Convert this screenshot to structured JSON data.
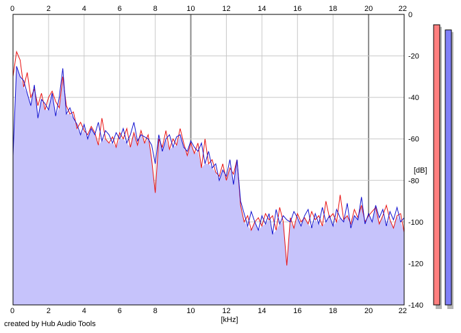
{
  "footer": {
    "credit": "created by Hub Audio Tools"
  },
  "chart_data": {
    "type": "line",
    "xlabel": "[kHz]",
    "ylabel": "[dB]",
    "xlim": [
      0,
      22
    ],
    "ylim": [
      -140,
      0
    ],
    "x_ticks": [
      0,
      2,
      4,
      6,
      8,
      10,
      12,
      14,
      16,
      18,
      20,
      22
    ],
    "y_ticks": [
      0,
      -20,
      -40,
      -60,
      -80,
      -100,
      -120,
      -140
    ],
    "grid": true,
    "fill_color": "#c6c3fb",
    "series": [
      {
        "color": "#e81010",
        "x": [
          0,
          0.2,
          0.4,
          0.6,
          0.8,
          1.0,
          1.2,
          1.4,
          1.6,
          1.8,
          2.0,
          2.2,
          2.4,
          2.6,
          2.8,
          3.0,
          3.2,
          3.4,
          3.6,
          3.8,
          4.0,
          4.2,
          4.4,
          4.6,
          4.8,
          5.0,
          5.2,
          5.4,
          5.6,
          5.8,
          6.0,
          6.2,
          6.4,
          6.6,
          6.8,
          7.0,
          7.2,
          7.4,
          7.6,
          7.8,
          8.0,
          8.2,
          8.4,
          8.6,
          8.8,
          9.0,
          9.2,
          9.4,
          9.6,
          9.8,
          10.0,
          10.2,
          10.4,
          10.6,
          10.8,
          11.0,
          11.2,
          11.4,
          11.6,
          11.8,
          12.0,
          12.2,
          12.4,
          12.6,
          12.8,
          13.0,
          13.2,
          13.4,
          13.6,
          13.8,
          14.0,
          14.2,
          14.4,
          14.6,
          14.8,
          15.0,
          15.2,
          15.4,
          15.6,
          15.8,
          16.0,
          16.2,
          16.4,
          16.6,
          16.8,
          17.0,
          17.2,
          17.4,
          17.6,
          17.8,
          18.0,
          18.2,
          18.4,
          18.6,
          18.8,
          19.0,
          19.2,
          19.4,
          19.6,
          19.8,
          20.0,
          20.2,
          20.4,
          20.6,
          20.8,
          21.0,
          21.2,
          21.4,
          21.6,
          21.8,
          22.0
        ],
        "y": [
          -30,
          -18,
          -22,
          -35,
          -28,
          -40,
          -36,
          -44,
          -38,
          -46,
          -40,
          -37,
          -42,
          -45,
          -30,
          -44,
          -48,
          -47,
          -55,
          -52,
          -56,
          -58,
          -54,
          -57,
          -63,
          -50,
          -60,
          -62,
          -59,
          -64,
          -57,
          -60,
          -55,
          -64,
          -57,
          -63,
          -56,
          -62,
          -58,
          -70,
          -86,
          -60,
          -64,
          -56,
          -65,
          -60,
          -63,
          -55,
          -62,
          -68,
          -62,
          -67,
          -62,
          -74,
          -60,
          -72,
          -70,
          -76,
          -78,
          -72,
          -80,
          -74,
          -77,
          -70,
          -92,
          -100,
          -97,
          -104,
          -100,
          -98,
          -102,
          -96,
          -99,
          -97,
          -104,
          -93,
          -100,
          -121,
          -98,
          -103,
          -96,
          -100,
          -98,
          -101,
          -95,
          -99,
          -97,
          -102,
          -90,
          -98,
          -96,
          -100,
          -87,
          -99,
          -97,
          -101,
          -94,
          -98,
          -92,
          -100,
          -97,
          -95,
          -93,
          -101,
          -97,
          -92,
          -99,
          -103,
          -97,
          -96,
          -105
        ]
      },
      {
        "color": "#1010d0",
        "x": [
          0,
          0.2,
          0.4,
          0.6,
          0.8,
          1.0,
          1.2,
          1.4,
          1.6,
          1.8,
          2.0,
          2.2,
          2.4,
          2.6,
          2.8,
          3.0,
          3.2,
          3.4,
          3.6,
          3.8,
          4.0,
          4.2,
          4.4,
          4.6,
          4.8,
          5.0,
          5.2,
          5.4,
          5.6,
          5.8,
          6.0,
          6.2,
          6.4,
          6.6,
          6.8,
          7.0,
          7.2,
          7.4,
          7.6,
          7.8,
          8.0,
          8.2,
          8.4,
          8.6,
          8.8,
          9.0,
          9.2,
          9.4,
          9.6,
          9.8,
          10.0,
          10.2,
          10.4,
          10.6,
          10.8,
          11.0,
          11.2,
          11.4,
          11.6,
          11.8,
          12.0,
          12.2,
          12.4,
          12.6,
          12.8,
          13.0,
          13.2,
          13.4,
          13.6,
          13.8,
          14.0,
          14.2,
          14.4,
          14.6,
          14.8,
          15.0,
          15.2,
          15.4,
          15.6,
          15.8,
          16.0,
          16.2,
          16.4,
          16.6,
          16.8,
          17.0,
          17.2,
          17.4,
          17.6,
          17.8,
          18.0,
          18.2,
          18.4,
          18.6,
          18.8,
          19.0,
          19.2,
          19.4,
          19.6,
          19.8,
          20.0,
          20.2,
          20.4,
          20.6,
          20.8,
          21.0,
          21.2,
          21.4,
          21.6,
          21.8,
          22.0
        ],
        "y": [
          -68,
          -25,
          -30,
          -32,
          -38,
          -44,
          -34,
          -50,
          -41,
          -43,
          -46,
          -38,
          -49,
          -40,
          -26,
          -48,
          -45,
          -50,
          -53,
          -58,
          -53,
          -60,
          -55,
          -58,
          -52,
          -61,
          -56,
          -58,
          -62,
          -57,
          -60,
          -55,
          -62,
          -58,
          -52,
          -61,
          -58,
          -59,
          -60,
          -63,
          -72,
          -58,
          -66,
          -60,
          -58,
          -64,
          -59,
          -58,
          -64,
          -66,
          -61,
          -64,
          -66,
          -62,
          -72,
          -66,
          -74,
          -72,
          -80,
          -75,
          -78,
          -70,
          -82,
          -70,
          -90,
          -96,
          -102,
          -95,
          -100,
          -104,
          -97,
          -101,
          -96,
          -106,
          -94,
          -101,
          -97,
          -99,
          -100,
          -95,
          -98,
          -102,
          -97,
          -94,
          -103,
          -96,
          -101,
          -93,
          -100,
          -97,
          -102,
          -94,
          -98,
          -100,
          -91,
          -103,
          -97,
          -99,
          -88,
          -101,
          -96,
          -100,
          -92,
          -98,
          -94,
          -102,
          -95,
          -99,
          -93,
          -100,
          -98
        ]
      }
    ],
    "meters": [
      {
        "color": "#ff7f7f",
        "level_db": -5
      },
      {
        "color": "#8080f8",
        "level_db": -7.5
      }
    ]
  }
}
